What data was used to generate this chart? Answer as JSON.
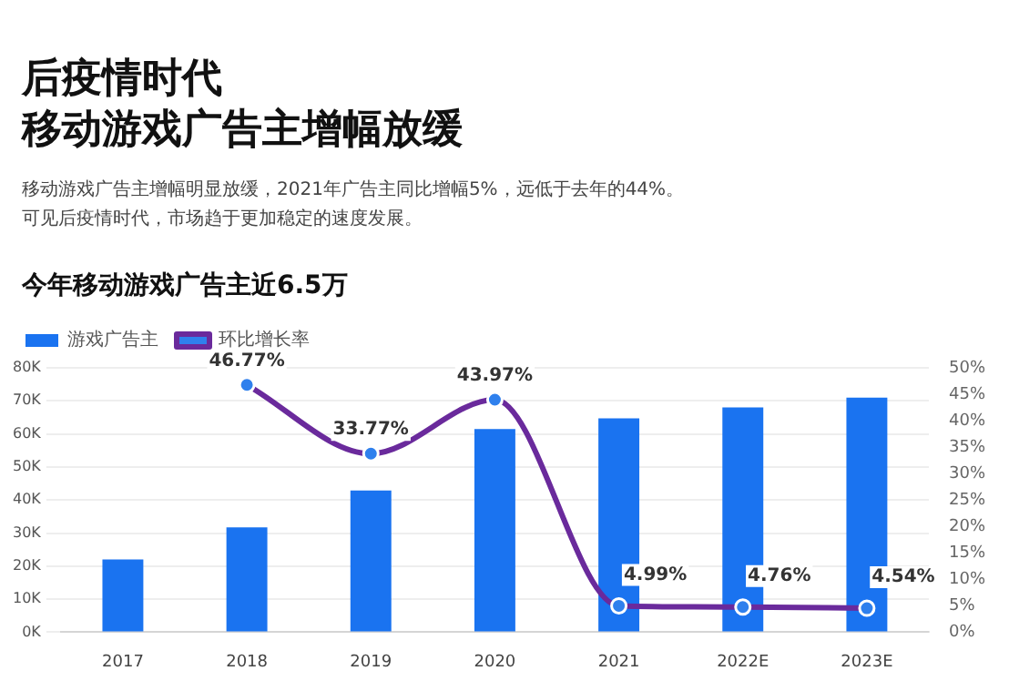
{
  "chart_data": {
    "type": "bar",
    "title": "后疫情时代",
    "subtitle": "移动游戏广告主增幅放缓",
    "annotations": [
      "移动游戏广告主增幅明显放缓，2021年广告主同比增幅5%，远低于去年的44%。",
      "可见后疫情时代，市场趋于更加稳定的速度发展。",
      "今年移动游戏广告主近6.5万"
    ],
    "categories": [
      "2017",
      "2018",
      "2019",
      "2020",
      "2021",
      "2022E",
      "2023E"
    ],
    "series": [
      {
        "name": "游戏广告主",
        "color": "#1a73f0",
        "values": [
          22000,
          31700,
          42900,
          61500,
          64700,
          68000,
          71000
        ]
      },
      {
        "name": "环比增长率",
        "type": "line",
        "axis": "y2",
        "color": "#6a2a9c",
        "values": [
          null,
          46.77,
          33.77,
          43.97,
          4.99,
          4.76,
          4.54
        ],
        "value_labels": [
          null,
          "46.77%",
          "33.77%",
          "43.97%",
          "4.99%",
          "4.76%",
          "4.54%"
        ]
      }
    ],
    "ylim": [
      0,
      80000
    ],
    "yticks": [
      {
        "value": 0,
        "label": "0K"
      },
      {
        "value": 10000,
        "label": "10K"
      },
      {
        "value": 20000,
        "label": "20K"
      },
      {
        "value": 30000,
        "label": "30K"
      },
      {
        "value": 40000,
        "label": "40K"
      },
      {
        "value": 50000,
        "label": "50K"
      },
      {
        "value": 60000,
        "label": "60K"
      },
      {
        "value": 70000,
        "label": "70K"
      },
      {
        "value": 80000,
        "label": "80K"
      }
    ],
    "y2lim": [
      0,
      50
    ],
    "y2ticks": [
      {
        "value": 0,
        "label": "0%"
      },
      {
        "value": 5,
        "label": "5%"
      },
      {
        "value": 10,
        "label": "10%"
      },
      {
        "value": 15,
        "label": "15%"
      },
      {
        "value": 20,
        "label": "20%"
      },
      {
        "value": 25,
        "label": "25%"
      },
      {
        "value": 30,
        "label": "30%"
      },
      {
        "value": 35,
        "label": "35%"
      },
      {
        "value": 40,
        "label": "40%"
      },
      {
        "value": 45,
        "label": "45%"
      },
      {
        "value": 50,
        "label": "50%"
      }
    ],
    "grid": "y",
    "legend": "top left",
    "marker": "circle",
    "line_style": "solid"
  }
}
